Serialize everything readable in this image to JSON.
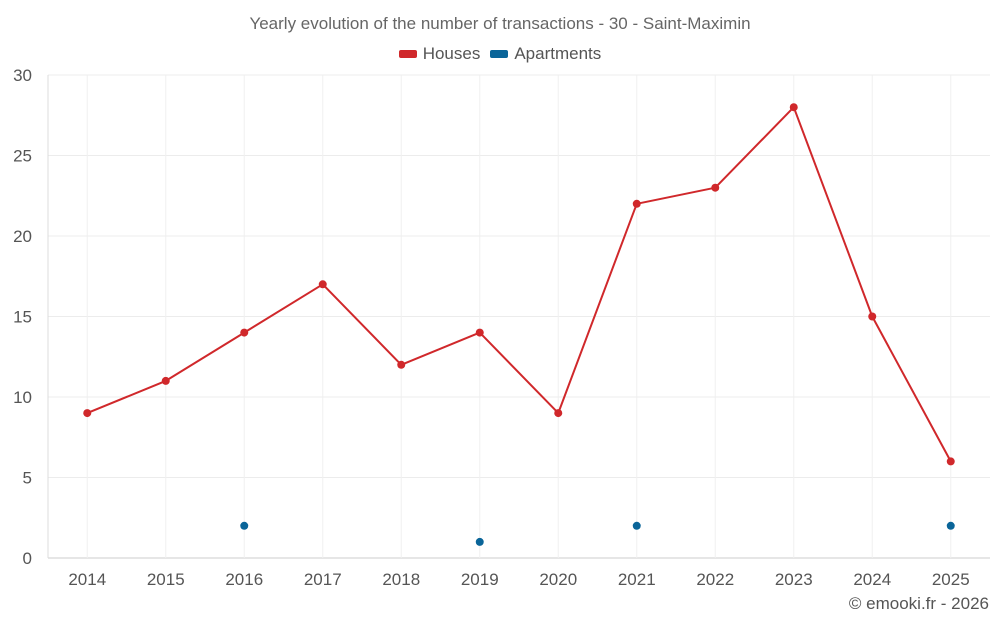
{
  "chart_data": {
    "type": "line",
    "title": "Yearly evolution of the number of transactions - 30 - Saint-Maximin",
    "xlabel": "",
    "ylabel": "",
    "categories": [
      "2014",
      "2015",
      "2016",
      "2017",
      "2018",
      "2019",
      "2020",
      "2021",
      "2022",
      "2023",
      "2024",
      "2025"
    ],
    "ylim": [
      0,
      30
    ],
    "yticks": [
      "0",
      "5",
      "10",
      "15",
      "20",
      "25",
      "30"
    ],
    "grid": true,
    "legend_position": "top-center",
    "series": [
      {
        "name": "Houses",
        "color": "#d0282b",
        "line": true,
        "values": [
          9,
          11,
          14,
          17,
          12,
          14,
          9,
          22,
          23,
          28,
          15,
          6
        ]
      },
      {
        "name": "Apartments",
        "color": "#0a6599",
        "line": false,
        "values": [
          null,
          null,
          2,
          null,
          null,
          1,
          null,
          2,
          null,
          null,
          null,
          2
        ]
      }
    ]
  },
  "credit": "© emooki.fr - 2026"
}
